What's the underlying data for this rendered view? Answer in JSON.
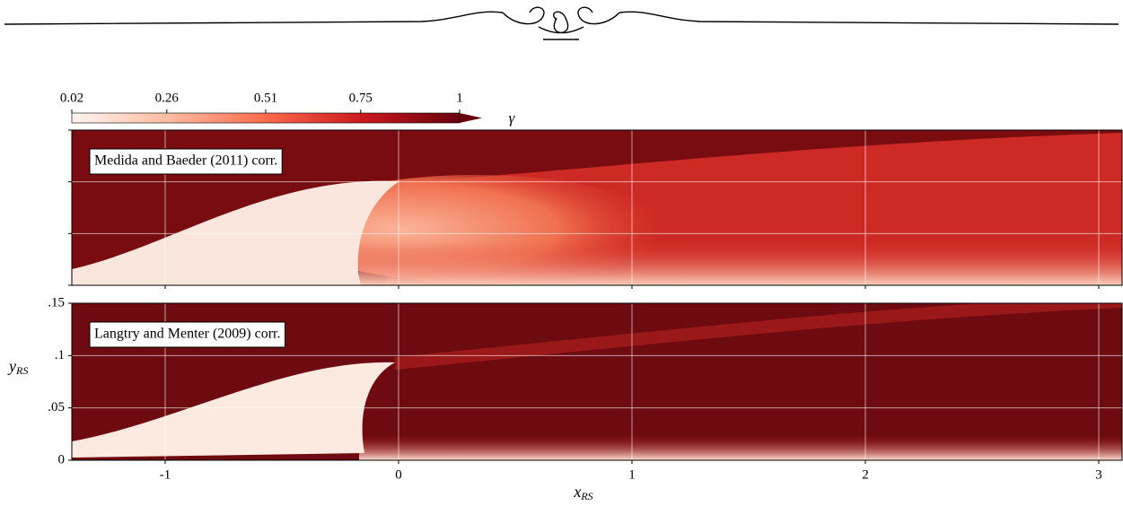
{
  "chart_data": {
    "type": "contour",
    "xlabel": "x",
    "xlabel_subscript": "RS",
    "ylabel": "y",
    "ylabel_subscript": "RS",
    "xlim": [
      -1.4,
      3.1
    ],
    "xticks": [
      -1,
      0,
      1,
      2,
      3
    ],
    "ylim": [
      0,
      0.15
    ],
    "yticks": [
      0,
      {
        "value": 0.05,
        "label": ".05"
      },
      {
        "value": 0.1,
        "label": ".1"
      },
      {
        "value": 0.15,
        "label": ".15"
      }
    ],
    "grid": true,
    "colorbar": {
      "label": "γ",
      "lim": [
        0.02,
        1
      ],
      "ticks": [
        0.02,
        0.26,
        0.51,
        0.75,
        1
      ],
      "colors": [
        "#fff5f0",
        "#fcbba1",
        "#fb6a4a",
        "#cb181d",
        "#67000d"
      ]
    },
    "panels": [
      {
        "label": "Medida and Baeder (2011) corr."
      },
      {
        "label": "Langtry and Menter (2009) corr."
      }
    ]
  }
}
